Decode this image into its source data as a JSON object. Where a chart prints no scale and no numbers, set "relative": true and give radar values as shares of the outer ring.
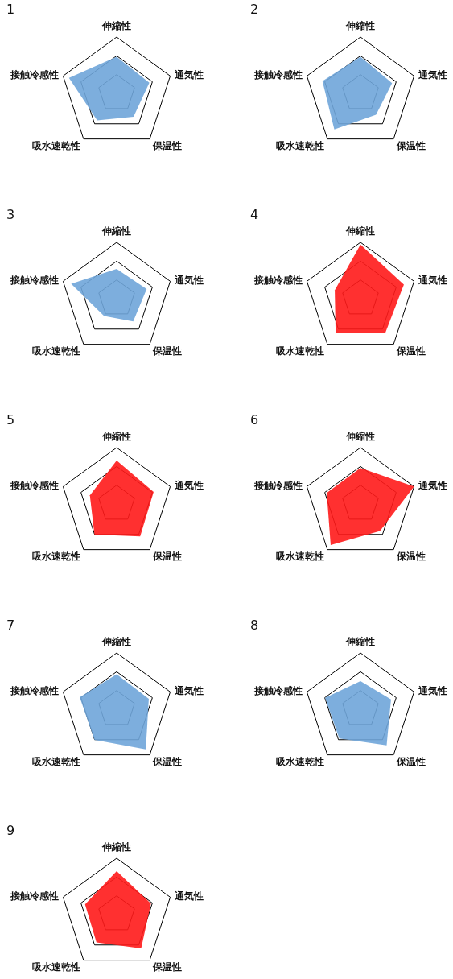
{
  "chart_data": [
    {
      "type": "radar",
      "title": "1",
      "relative": true,
      "grid": true,
      "categories": [
        "伸縮性",
        "通気性",
        "保温性",
        "吸水速乾性",
        "接触冷感性"
      ],
      "series": [
        {
          "color": "#6fa5d9",
          "values": [
            0.65,
            0.61,
            0.51,
            0.59,
            0.89
          ]
        }
      ]
    },
    {
      "type": "radar",
      "title": "2",
      "relative": true,
      "grid": true,
      "categories": [
        "伸縮性",
        "通気性",
        "保温性",
        "吸水速乾性",
        "接触冷感性"
      ],
      "series": [
        {
          "color": "#6fa5d9",
          "values": [
            0.65,
            0.59,
            0.47,
            0.79,
            0.71
          ]
        }
      ]
    },
    {
      "type": "radar",
      "title": "3",
      "relative": true,
      "grid": true,
      "categories": [
        "伸縮性",
        "通気性",
        "保温性",
        "吸水速乾性",
        "接触冷感性"
      ],
      "series": [
        {
          "color": "#6fa5d9",
          "values": [
            0.53,
            0.56,
            0.5,
            0.38,
            0.85
          ]
        }
      ]
    },
    {
      "type": "radar",
      "title": "4",
      "relative": true,
      "grid": true,
      "categories": [
        "伸縮性",
        "通気性",
        "保温性",
        "吸水速乾性",
        "接触冷感性"
      ],
      "series": [
        {
          "color": "#ff1a1a",
          "values": [
            0.96,
            0.81,
            0.75,
            0.75,
            0.48
          ]
        }
      ]
    },
    {
      "type": "radar",
      "title": "5",
      "relative": true,
      "grid": true,
      "categories": [
        "伸縮性",
        "通気性",
        "保温性",
        "吸水速乾性",
        "接触冷感性"
      ],
      "series": [
        {
          "color": "#ff1a1a",
          "values": [
            0.77,
            0.69,
            0.71,
            0.67,
            0.5
          ]
        }
      ]
    },
    {
      "type": "radar",
      "title": "6",
      "relative": true,
      "grid": true,
      "categories": [
        "伸縮性",
        "通気性",
        "保温性",
        "吸水速乾性",
        "接触冷感性"
      ],
      "series": [
        {
          "color": "#ff1a1a",
          "values": [
            0.64,
            1.0,
            0.59,
            0.9,
            0.63
          ]
        }
      ]
    },
    {
      "type": "radar",
      "title": "7",
      "relative": true,
      "grid": true,
      "categories": [
        "伸縮性",
        "通気性",
        "保温性",
        "吸水速乾性",
        "接触冷感性"
      ],
      "series": [
        {
          "color": "#6fa5d9",
          "values": [
            0.62,
            0.6,
            0.88,
            0.67,
            0.69
          ]
        }
      ]
    },
    {
      "type": "radar",
      "title": "8",
      "relative": true,
      "grid": true,
      "categories": [
        "伸縮性",
        "通気性",
        "保温性",
        "吸水速乾性",
        "接触冷感性"
      ],
      "series": [
        {
          "color": "#6fa5d9",
          "values": [
            0.5,
            0.57,
            0.79,
            0.64,
            0.66
          ]
        }
      ]
    },
    {
      "type": "radar",
      "title": "9",
      "relative": true,
      "grid": true,
      "categories": [
        "伸縮性",
        "通気性",
        "保温性",
        "吸水速乾性",
        "接触冷感性"
      ],
      "series": [
        {
          "color": "#ff1a1a",
          "values": [
            0.77,
            0.64,
            0.74,
            0.61,
            0.59
          ]
        }
      ]
    }
  ]
}
